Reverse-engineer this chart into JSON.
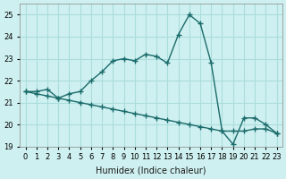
{
  "xlabel": "Humidex (Indice chaleur)",
  "ylabel": "",
  "background_color": "#cff0f0",
  "grid_color": "#aadddd",
  "line_color": "#1a6b6b",
  "xlim": [
    -0.5,
    23.5
  ],
  "ylim": [
    19,
    25.5
  ],
  "yticks": [
    19,
    20,
    21,
    22,
    23,
    24,
    25
  ],
  "xticks": [
    0,
    1,
    2,
    3,
    4,
    5,
    6,
    7,
    8,
    9,
    10,
    11,
    12,
    13,
    14,
    15,
    16,
    17,
    18,
    19,
    20,
    21,
    22,
    23
  ],
  "curve1_x": [
    0,
    1,
    2,
    3,
    4,
    5,
    6,
    7,
    8,
    9,
    10,
    11,
    12,
    13,
    14,
    15,
    16,
    17,
    18,
    19,
    20,
    21,
    22,
    23
  ],
  "curve1_y": [
    21.5,
    21.5,
    21.6,
    21.2,
    21.4,
    21.5,
    22.0,
    22.4,
    22.9,
    23.0,
    22.9,
    23.2,
    23.1,
    22.8,
    24.1,
    25.0,
    24.6,
    22.8,
    19.7,
    19.1,
    20.3,
    20.3,
    20.0,
    19.6
  ],
  "curve2_x": [
    0,
    1,
    2,
    3,
    4,
    5,
    6,
    7,
    8,
    9,
    10,
    11,
    12,
    13,
    14,
    15,
    16,
    17,
    18,
    19,
    20,
    21,
    22,
    23
  ],
  "curve2_y": [
    21.5,
    21.4,
    21.3,
    21.2,
    21.1,
    21.0,
    20.9,
    20.8,
    20.7,
    20.6,
    20.5,
    20.4,
    20.3,
    20.2,
    20.1,
    20.0,
    19.9,
    19.8,
    19.7,
    19.7,
    19.7,
    19.8,
    19.8,
    19.6
  ]
}
